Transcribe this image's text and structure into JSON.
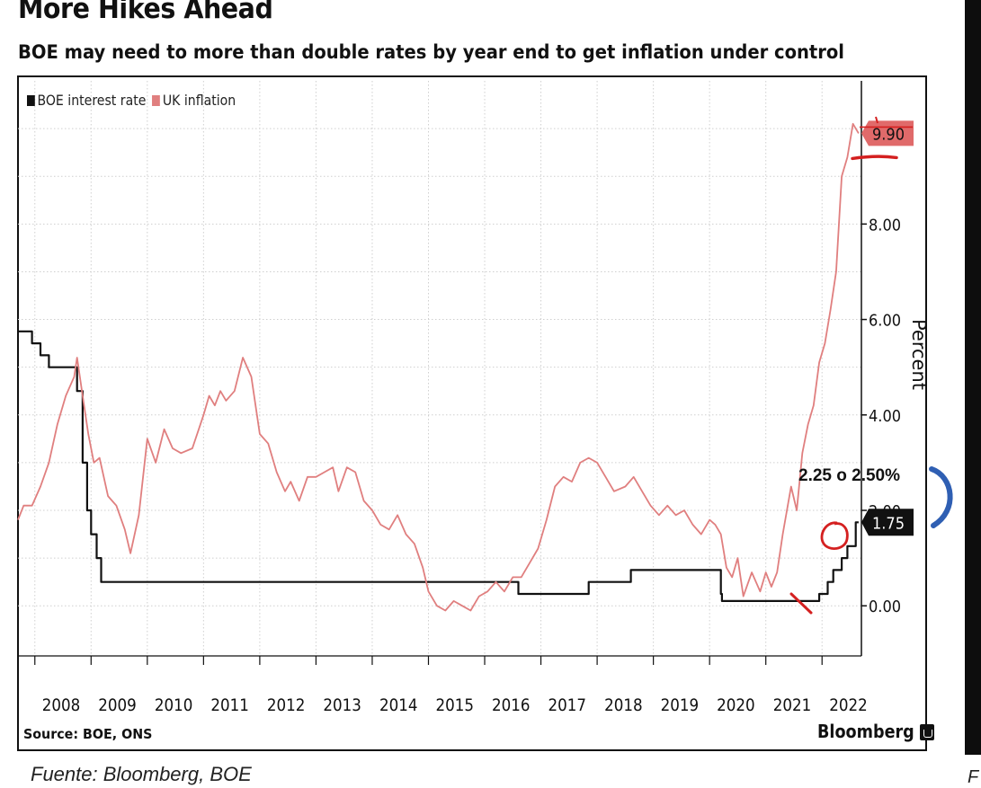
{
  "header": {
    "title": "More Hikes Ahead",
    "subtitle": "BOE may need to more than double rates by year end to get inflation under control"
  },
  "footer": {
    "source": "Source: BOE, ONS",
    "brand": "Bloomberg",
    "caption": "Fuente: Bloomberg, BOE",
    "cut_letter": "F"
  },
  "annotation": {
    "text": "2.25 o 2.50%"
  },
  "colors": {
    "rate": "#111111",
    "inflation": "#e07f7f",
    "inflation_tag": "#e06a6a",
    "pen_red": "#d42020",
    "pen_blue": "#2f5fb3"
  },
  "chart_data": {
    "type": "line",
    "title": "More Hikes Ahead",
    "subtitle": "BOE may need to more than double rates by year end to get inflation under control",
    "ylabel": "Percent",
    "xlim": [
      2007.7,
      2022.7
    ],
    "ylim": [
      -1.05,
      11.0
    ],
    "y_ticks": [
      0,
      2,
      4,
      6,
      8
    ],
    "y_tick_labels": [
      "0.00",
      "2.00",
      "4.00",
      "6.00",
      "8.00"
    ],
    "x_ticks": [
      2008,
      2009,
      2010,
      2011,
      2012,
      2013,
      2014,
      2015,
      2016,
      2017,
      2018,
      2019,
      2020,
      2021,
      2022
    ],
    "legend": {
      "position": "top-left",
      "entries": [
        "BOE interest rate",
        "UK inflation"
      ]
    },
    "grid": true,
    "series": [
      {
        "name": "BOE interest rate",
        "color": "#111111",
        "step": true,
        "points": [
          [
            2007.7,
            5.75
          ],
          [
            2007.95,
            5.75
          ],
          [
            2007.95,
            5.5
          ],
          [
            2008.1,
            5.5
          ],
          [
            2008.1,
            5.25
          ],
          [
            2008.25,
            5.25
          ],
          [
            2008.25,
            5.0
          ],
          [
            2008.75,
            5.0
          ],
          [
            2008.75,
            4.5
          ],
          [
            2008.85,
            4.5
          ],
          [
            2008.85,
            3.0
          ],
          [
            2008.93,
            3.0
          ],
          [
            2008.93,
            2.0
          ],
          [
            2009.0,
            2.0
          ],
          [
            2009.0,
            1.5
          ],
          [
            2009.1,
            1.5
          ],
          [
            2009.1,
            1.0
          ],
          [
            2009.18,
            1.0
          ],
          [
            2009.18,
            0.5
          ],
          [
            2016.6,
            0.5
          ],
          [
            2016.6,
            0.25
          ],
          [
            2017.85,
            0.25
          ],
          [
            2017.85,
            0.5
          ],
          [
            2018.6,
            0.5
          ],
          [
            2018.6,
            0.75
          ],
          [
            2020.2,
            0.75
          ],
          [
            2020.2,
            0.25
          ],
          [
            2020.22,
            0.25
          ],
          [
            2020.22,
            0.1
          ],
          [
            2021.95,
            0.1
          ],
          [
            2021.95,
            0.25
          ],
          [
            2022.1,
            0.25
          ],
          [
            2022.1,
            0.5
          ],
          [
            2022.2,
            0.5
          ],
          [
            2022.2,
            0.75
          ],
          [
            2022.35,
            0.75
          ],
          [
            2022.35,
            1.0
          ],
          [
            2022.45,
            1.0
          ],
          [
            2022.45,
            1.25
          ],
          [
            2022.6,
            1.25
          ],
          [
            2022.6,
            1.75
          ],
          [
            2022.65,
            1.75
          ]
        ]
      },
      {
        "name": "UK inflation",
        "color": "#e07f7f",
        "step": false,
        "points": [
          [
            2007.7,
            1.8
          ],
          [
            2007.8,
            2.1
          ],
          [
            2007.95,
            2.1
          ],
          [
            2008.1,
            2.5
          ],
          [
            2008.25,
            3.0
          ],
          [
            2008.4,
            3.8
          ],
          [
            2008.55,
            4.4
          ],
          [
            2008.7,
            4.8
          ],
          [
            2008.75,
            5.2
          ],
          [
            2008.85,
            4.4
          ],
          [
            2008.95,
            3.6
          ],
          [
            2009.05,
            3.0
          ],
          [
            2009.15,
            3.1
          ],
          [
            2009.3,
            2.3
          ],
          [
            2009.45,
            2.1
          ],
          [
            2009.6,
            1.6
          ],
          [
            2009.7,
            1.1
          ],
          [
            2009.85,
            1.9
          ],
          [
            2010.0,
            3.5
          ],
          [
            2010.15,
            3.0
          ],
          [
            2010.3,
            3.7
          ],
          [
            2010.45,
            3.3
          ],
          [
            2010.6,
            3.2
          ],
          [
            2010.8,
            3.3
          ],
          [
            2011.0,
            4.0
          ],
          [
            2011.1,
            4.4
          ],
          [
            2011.2,
            4.2
          ],
          [
            2011.3,
            4.5
          ],
          [
            2011.4,
            4.3
          ],
          [
            2011.55,
            4.5
          ],
          [
            2011.7,
            5.2
          ],
          [
            2011.85,
            4.8
          ],
          [
            2012.0,
            3.6
          ],
          [
            2012.15,
            3.4
          ],
          [
            2012.3,
            2.8
          ],
          [
            2012.45,
            2.4
          ],
          [
            2012.55,
            2.6
          ],
          [
            2012.7,
            2.2
          ],
          [
            2012.85,
            2.7
          ],
          [
            2013.0,
            2.7
          ],
          [
            2013.15,
            2.8
          ],
          [
            2013.3,
            2.9
          ],
          [
            2013.4,
            2.4
          ],
          [
            2013.55,
            2.9
          ],
          [
            2013.7,
            2.8
          ],
          [
            2013.85,
            2.2
          ],
          [
            2014.0,
            2.0
          ],
          [
            2014.15,
            1.7
          ],
          [
            2014.3,
            1.6
          ],
          [
            2014.45,
            1.9
          ],
          [
            2014.6,
            1.5
          ],
          [
            2014.75,
            1.3
          ],
          [
            2014.9,
            0.8
          ],
          [
            2015.0,
            0.3
          ],
          [
            2015.15,
            0.0
          ],
          [
            2015.3,
            -0.1
          ],
          [
            2015.45,
            0.1
          ],
          [
            2015.6,
            0.0
          ],
          [
            2015.75,
            -0.1
          ],
          [
            2015.9,
            0.2
          ],
          [
            2016.05,
            0.3
          ],
          [
            2016.2,
            0.5
          ],
          [
            2016.35,
            0.3
          ],
          [
            2016.5,
            0.6
          ],
          [
            2016.65,
            0.6
          ],
          [
            2016.8,
            0.9
          ],
          [
            2016.95,
            1.2
          ],
          [
            2017.1,
            1.8
          ],
          [
            2017.25,
            2.5
          ],
          [
            2017.4,
            2.7
          ],
          [
            2017.55,
            2.6
          ],
          [
            2017.7,
            3.0
          ],
          [
            2017.85,
            3.1
          ],
          [
            2018.0,
            3.0
          ],
          [
            2018.15,
            2.7
          ],
          [
            2018.3,
            2.4
          ],
          [
            2018.5,
            2.5
          ],
          [
            2018.65,
            2.7
          ],
          [
            2018.8,
            2.4
          ],
          [
            2018.95,
            2.1
          ],
          [
            2019.1,
            1.9
          ],
          [
            2019.25,
            2.1
          ],
          [
            2019.4,
            1.9
          ],
          [
            2019.55,
            2.0
          ],
          [
            2019.7,
            1.7
          ],
          [
            2019.85,
            1.5
          ],
          [
            2020.0,
            1.8
          ],
          [
            2020.1,
            1.7
          ],
          [
            2020.2,
            1.5
          ],
          [
            2020.3,
            0.8
          ],
          [
            2020.4,
            0.6
          ],
          [
            2020.5,
            1.0
          ],
          [
            2020.6,
            0.2
          ],
          [
            2020.75,
            0.7
          ],
          [
            2020.9,
            0.3
          ],
          [
            2021.0,
            0.7
          ],
          [
            2021.1,
            0.4
          ],
          [
            2021.2,
            0.7
          ],
          [
            2021.3,
            1.5
          ],
          [
            2021.45,
            2.5
          ],
          [
            2021.55,
            2.0
          ],
          [
            2021.65,
            3.2
          ],
          [
            2021.75,
            3.8
          ],
          [
            2021.85,
            4.2
          ],
          [
            2021.95,
            5.1
          ],
          [
            2022.05,
            5.5
          ],
          [
            2022.15,
            6.2
          ],
          [
            2022.25,
            7.0
          ],
          [
            2022.35,
            9.0
          ],
          [
            2022.45,
            9.4
          ],
          [
            2022.55,
            10.1
          ],
          [
            2022.65,
            9.9
          ]
        ]
      }
    ],
    "end_labels": [
      {
        "series": "UK inflation",
        "text": "9.90",
        "value": 9.9
      },
      {
        "series": "BOE interest rate",
        "text": "1.75",
        "value": 1.75
      }
    ]
  }
}
